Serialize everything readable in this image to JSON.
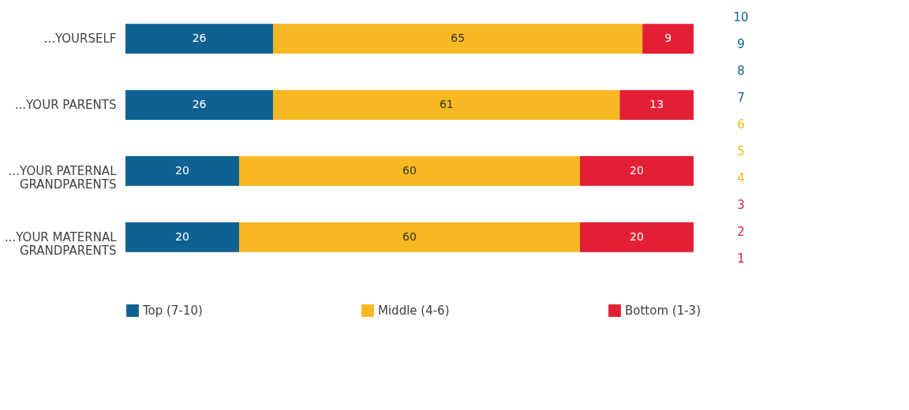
{
  "chart_data": {
    "type": "bar",
    "orientation": "horizontal",
    "stacked": true,
    "categories": [
      "...YOURSELF",
      "...YOUR PARENTS",
      "...YOUR PATERNAL\nGRANDPARENTS",
      "...YOUR MATERNAL\nGRANDPARENTS"
    ],
    "series": [
      {
        "name": "Top (7-10)",
        "color": "#0f6191",
        "values": [
          26,
          26,
          20,
          20
        ]
      },
      {
        "name": "Middle (4-6)",
        "color": "#f8b822",
        "values": [
          65,
          61,
          60,
          60
        ]
      },
      {
        "name": "Bottom (1-3)",
        "color": "#e41f35",
        "values": [
          9,
          13,
          20,
          20
        ]
      }
    ],
    "xlim": [
      0,
      100
    ],
    "tick_labels": "y",
    "data_labels": true,
    "legend": "bottom",
    "annotations": [
      "10",
      "9",
      "8",
      "7",
      "6",
      "5",
      "4",
      "3",
      "2",
      "1"
    ]
  }
}
